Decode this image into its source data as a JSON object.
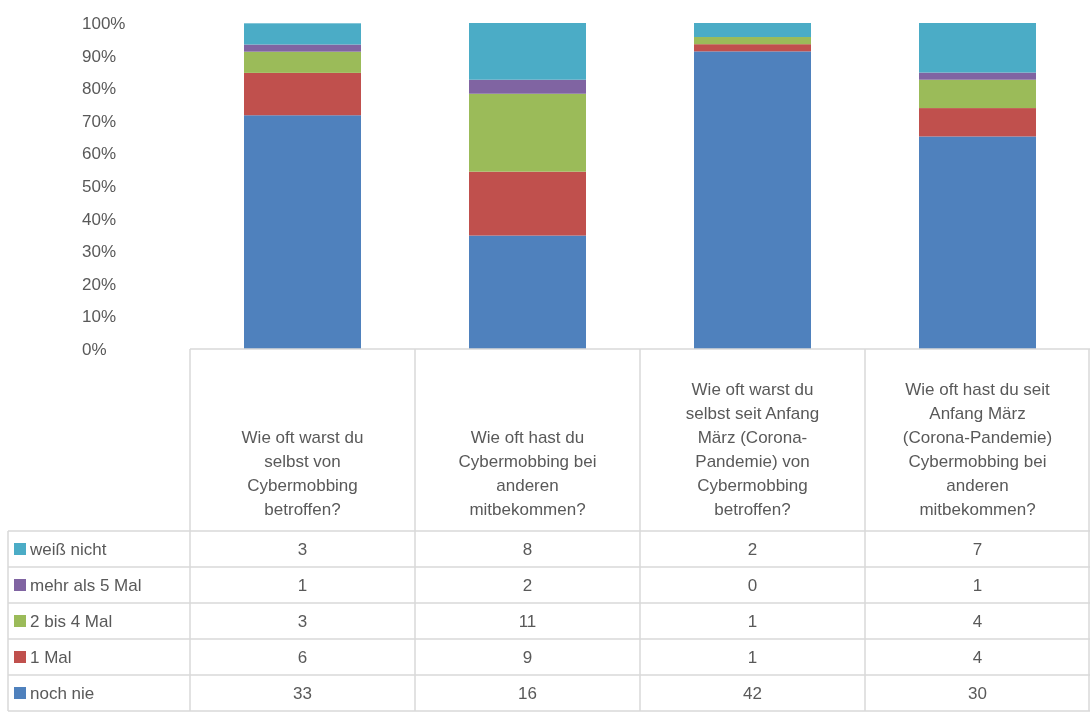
{
  "chart_data": {
    "type": "bar",
    "stacked": true,
    "categories": [
      "Wie oft warst du selbst von Cybermobbing betroffen?",
      "Wie oft hast du Cybermobbing bei anderen mitbekommen?",
      "Wie oft warst du selbst seit Anfang März (Corona-Pandemie) von Cybermobbing betroffen?",
      "Wie oft hast du seit Anfang März (Corona-Pandemie) Cybermobbing bei anderen mitbekommen?"
    ],
    "series": [
      {
        "name": "noch nie",
        "color": "#4f81bd",
        "values": [
          71.7,
          34.8,
          91.3,
          65.2
        ]
      },
      {
        "name": "1 Mal",
        "color": "#c0504d",
        "values": [
          13.0,
          19.6,
          2.2,
          8.7
        ]
      },
      {
        "name": "2 bis 4 Mal",
        "color": "#9bbb59",
        "values": [
          6.5,
          23.9,
          2.2,
          8.7
        ]
      },
      {
        "name": "mehr als 5 Mal",
        "color": "#8064a2",
        "values": [
          2.2,
          4.3,
          0,
          2.2
        ]
      },
      {
        "name": "weiß nicht",
        "color": "#4bacc6",
        "values": [
          6.5,
          17.4,
          4.3,
          15.2
        ]
      }
    ],
    "annotations": [
      "3",
      "8",
      "2",
      "7",
      "1",
      "2",
      "0",
      "1",
      "3",
      "11",
      "1",
      "4",
      "6",
      "9",
      "1",
      "4",
      "33",
      "16",
      "42",
      "30"
    ],
    "ylim": [
      0,
      100
    ],
    "yticks": [
      {
        "value": 0,
        "label": "0%"
      },
      {
        "value": 10,
        "label": "10%"
      },
      {
        "value": 20,
        "label": "20%"
      },
      {
        "value": 30,
        "label": "30%"
      },
      {
        "value": 40,
        "label": "40%"
      },
      {
        "value": 50,
        "label": "50%"
      },
      {
        "value": 60,
        "label": "60%"
      },
      {
        "value": 70,
        "label": "70%"
      },
      {
        "value": 80,
        "label": "80%"
      },
      {
        "value": 90,
        "label": "90%"
      },
      {
        "value": 100,
        "label": "100%"
      }
    ],
    "grid": false,
    "legend": "bottom"
  }
}
